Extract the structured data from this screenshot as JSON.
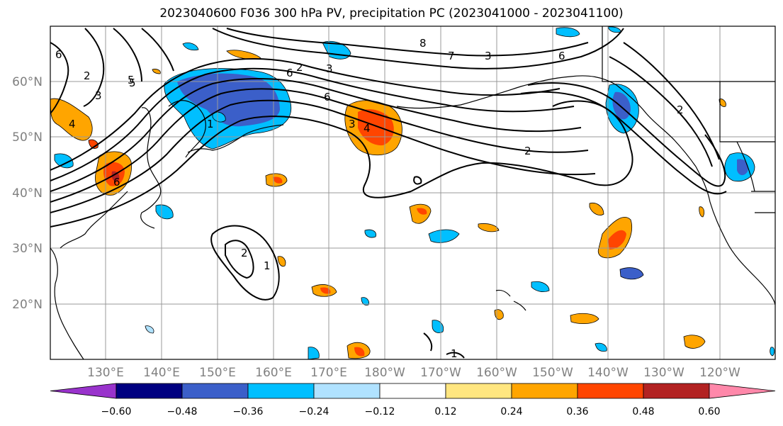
{
  "title": "2023040600 F036 300 hPa PV, precipitation PC (2023041000 - 2023041100)",
  "lat_labels": [
    "60°N",
    "50°N",
    "40°N",
    "30°N",
    "20°N"
  ],
  "lon_labels": [
    "130°E",
    "140°E",
    "150°E",
    "160°E",
    "170°E",
    "180°W",
    "170°W",
    "160°W",
    "150°W",
    "140°W",
    "130°W",
    "120°W"
  ],
  "colorbar": {
    "ticks": [
      "−0.60",
      "−0.48",
      "−0.36",
      "−0.24",
      "−0.12",
      "0.12",
      "0.24",
      "0.36",
      "0.48",
      "0.60"
    ],
    "colors": [
      "#9933cc",
      "#000080",
      "#3b5fc9",
      "#00bfff",
      "#b0e2ff",
      "#ffffff",
      "#ffe680",
      "#ffa500",
      "#ff4500",
      "#b22222",
      "#ff88aa"
    ]
  },
  "pv_contour_labels": [
    "2",
    "3",
    "4",
    "5",
    "6",
    "1",
    "2",
    "3",
    "6",
    "7",
    "8",
    "4",
    "6",
    "5",
    "3",
    "2",
    "1",
    "6",
    "3",
    "2",
    "1",
    "2",
    "6"
  ]
}
